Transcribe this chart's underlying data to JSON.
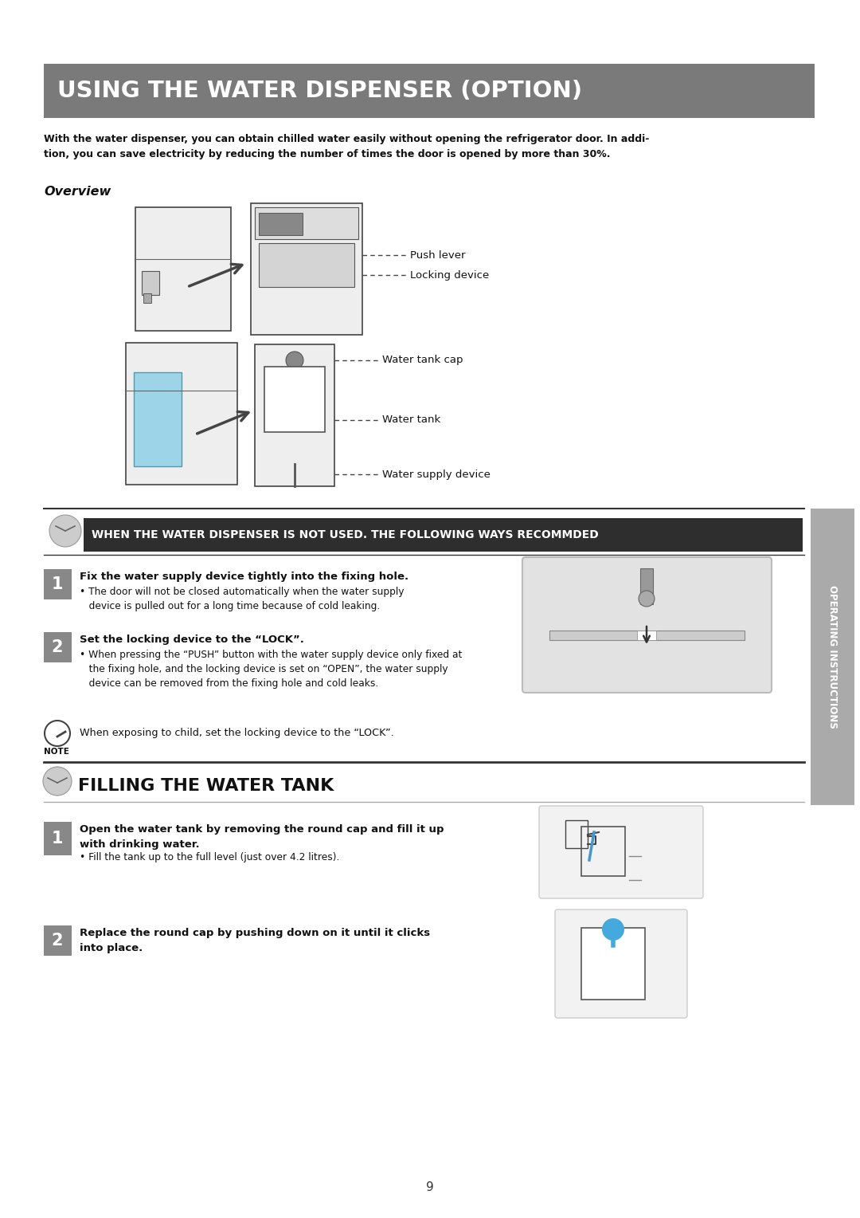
{
  "page_bg": "#ffffff",
  "title_bg": "#7a7a7a",
  "title_text": "USING THE WATER DISPENSER (OPTION)",
  "title_color": "#ffffff",
  "intro_text": "With the water dispenser, you can obtain chilled water easily without opening the refrigerator door. In addi-\ntion, you can save electricity by reducing the number of times the door is opened by more than 30%.",
  "overview_label": "Overview",
  "section2_text": "WHEN THE WATER DISPENSER IS NOT USED. THE FOLLOWING WAYS RECOMMDED",
  "step1_bold": "Fix the water supply device tightly into the fixing hole.",
  "step1_bullet": "• The door will not be closed automatically when the water supply\n   device is pulled out for a long time because of cold leaking.",
  "step2_bold": "Set the locking device to the “LOCK”.",
  "step2_bullet": "• When pressing the “PUSH” button with the water supply device only fixed at\n   the fixing hole, and the locking device is set on “OPEN”, the water supply\n   device can be removed from the fixing hole and cold leaks.",
  "note_text": "When exposing to child, set the locking device to the “LOCK”.",
  "section3_text": "FILLING THE WATER TANK",
  "fill_step1_bold": "Open the water tank by removing the round cap and fill it up\nwith drinking water.",
  "fill_step1_bullet": "• Fill the tank up to the full level (just over 4.2 litres).",
  "fill_step2_bold": "Replace the round cap by pushing down on it until it clicks\ninto place.",
  "sidebar_text": "OPERATING INSTRUCTIONS",
  "page_number": "9",
  "label_push": "Push lever",
  "label_lock": "Locking device",
  "label_cap": "Water tank cap",
  "label_tank": "Water tank",
  "label_supply": "Water supply device"
}
